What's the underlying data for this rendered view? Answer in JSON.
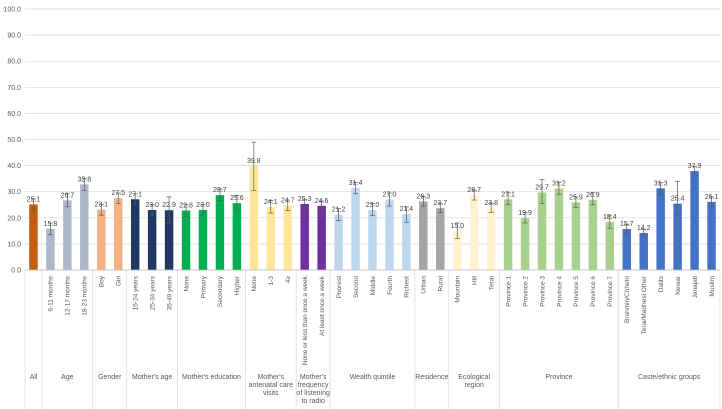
{
  "chart_data": {
    "type": "bar",
    "title": "",
    "xlabel": "",
    "ylabel": "",
    "ylim": [
      0,
      100
    ],
    "yticks": [
      "0.0",
      "10.0",
      "20.0",
      "30.0",
      "40.0",
      "50.0",
      "60.0",
      "70.0",
      "80.0",
      "90.0",
      "100.0"
    ],
    "grid": true,
    "groups": [
      {
        "name": "All",
        "color": "#c55a11",
        "bars": [
          {
            "label": "",
            "value": 25.1,
            "ci": [
              23,
              27.2
            ]
          }
        ]
      },
      {
        "name": "Age",
        "color": "#adb9ca",
        "bars": [
          {
            "label": "6-11 months",
            "value": 15.8,
            "ci": [
              13.5,
              18
            ]
          },
          {
            "label": "12-17 months",
            "value": 26.7,
            "ci": [
              24.2,
              29.2
            ]
          },
          {
            "label": "18-23 months",
            "value": 32.8,
            "ci": [
              30.5,
              35
            ]
          }
        ]
      },
      {
        "name": "Gender",
        "color": "#f4b183",
        "bars": [
          {
            "label": "Boy",
            "value": 23.1,
            "ci": [
              21,
              25.2
            ]
          },
          {
            "label": "Girl",
            "value": 27.5,
            "ci": [
              25.5,
              29.5
            ]
          }
        ]
      },
      {
        "name": "Mother's age",
        "color": "#1f3864",
        "bars": [
          {
            "label": "15-24 years",
            "value": 27.1,
            "ci": [
              25,
              29.2
            ]
          },
          {
            "label": "25-34 years",
            "value": 23.0,
            "ci": [
              21,
              25
            ]
          },
          {
            "label": "35-49 years",
            "value": 22.9,
            "ci": [
              18,
              28
            ]
          }
        ]
      },
      {
        "name": "Mother's education",
        "color": "#00b050",
        "bars": [
          {
            "label": "None",
            "value": 22.8,
            "ci": [
              20.5,
              25
            ]
          },
          {
            "label": "Primary",
            "value": 23.0,
            "ci": [
              21,
              25
            ]
          },
          {
            "label": "Secondary",
            "value": 28.7,
            "ci": [
              26.5,
              31
            ]
          },
          {
            "label": "Higher",
            "value": 25.6,
            "ci": [
              23,
              28.5
            ]
          }
        ]
      },
      {
        "name": "Mother's antenatal care visits",
        "color": "#ffe699",
        "bars": [
          {
            "label": "None",
            "value": 39.8,
            "ci": [
              30.5,
              49
            ]
          },
          {
            "label": "1-3",
            "value": 24.1,
            "ci": [
              21.8,
              26.6
            ]
          },
          {
            "label": "4≥",
            "value": 24.7,
            "ci": [
              22.8,
              26.8
            ]
          }
        ]
      },
      {
        "name": "Mother's frequency of listening to radio",
        "color": "#7030a0",
        "bars": [
          {
            "label": "None or less than once a week",
            "value": 25.3,
            "ci": [
              23.8,
              27
            ]
          },
          {
            "label": "At least once a week",
            "value": 24.6,
            "ci": [
              23,
              26.4
            ]
          }
        ]
      },
      {
        "name": "Wealth quintile",
        "color": "#bdd7ee",
        "bars": [
          {
            "label": "Poorest",
            "value": 21.2,
            "ci": [
              19,
              23.5
            ]
          },
          {
            "label": "Second",
            "value": 31.4,
            "ci": [
              29.2,
              33.6
            ]
          },
          {
            "label": "Middle",
            "value": 23.0,
            "ci": [
              20.8,
              25.4
            ]
          },
          {
            "label": "Fourth",
            "value": 27.0,
            "ci": [
              24.5,
              29.5
            ]
          },
          {
            "label": "Richest",
            "value": 21.4,
            "ci": [
              18.3,
              24.2
            ]
          }
        ]
      },
      {
        "name": "Residence",
        "color": "#a5a5a5",
        "bars": [
          {
            "label": "Urban",
            "value": 26.3,
            "ci": [
              24.5,
              28.2
            ]
          },
          {
            "label": "Rural",
            "value": 23.7,
            "ci": [
              22,
              25.6
            ]
          }
        ]
      },
      {
        "name": "Ecological region",
        "color": "#fff2cc",
        "bars": [
          {
            "label": "Mountain",
            "value": 15.0,
            "ci": [
              12,
              18
            ]
          },
          {
            "label": "Hill",
            "value": 28.7,
            "ci": [
              26.8,
              30.6
            ]
          },
          {
            "label": "Terai",
            "value": 23.8,
            "ci": [
              22,
              25.6
            ]
          }
        ]
      },
      {
        "name": "Province",
        "color": "#a9d18e",
        "bars": [
          {
            "label": "Province 1",
            "value": 27.1,
            "ci": [
              25,
              29.6
            ]
          },
          {
            "label": "Province 2",
            "value": 19.9,
            "ci": [
              18,
              22
            ]
          },
          {
            "label": "Province 3",
            "value": 29.7,
            "ci": [
              25.5,
              34.6
            ]
          },
          {
            "label": "Province 4",
            "value": 31.2,
            "ci": [
              29,
              33.6
            ]
          },
          {
            "label": "Province 5",
            "value": 25.9,
            "ci": [
              24,
              28
            ]
          },
          {
            "label": "Province 6",
            "value": 26.9,
            "ci": [
              25,
              29.6
            ]
          },
          {
            "label": "Province 7",
            "value": 18.4,
            "ci": [
              16,
              21
            ]
          }
        ]
      },
      {
        "name": "Caste/ethnic groups",
        "color": "#4472c4",
        "bars": [
          {
            "label": "Brahmin/Chhetri",
            "value": 15.7,
            "ci": [
              14,
              17.5
            ]
          },
          {
            "label": "Terai/Madhesi Other",
            "value": 14.2,
            "ci": [
              13,
              15.6
            ]
          },
          {
            "label": "Dalits",
            "value": 31.3,
            "ci": [
              29,
              33.6
            ]
          },
          {
            "label": "Newar",
            "value": 25.4,
            "ci": [
              21,
              34
            ]
          },
          {
            "label": "Janajati",
            "value": 37.9,
            "ci": [
              36,
              39.6
            ]
          },
          {
            "label": "Muslim",
            "value": 26.1,
            "ci": [
              24.4,
              28
            ]
          }
        ]
      }
    ]
  }
}
